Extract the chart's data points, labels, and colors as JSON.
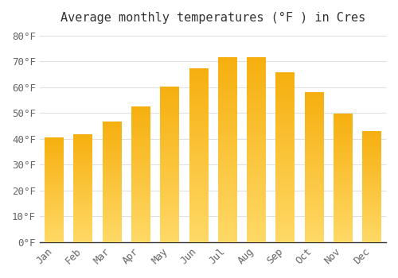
{
  "title": "Average monthly temperatures (°F ) in Cres",
  "months": [
    "Jan",
    "Feb",
    "Mar",
    "Apr",
    "May",
    "Jun",
    "Jul",
    "Aug",
    "Sep",
    "Oct",
    "Nov",
    "Dec"
  ],
  "values": [
    40.5,
    41.5,
    46.5,
    52.5,
    60.0,
    67.0,
    71.5,
    71.5,
    65.5,
    58.0,
    49.5,
    43.0
  ],
  "bar_color_dark": "#F5A800",
  "bar_color_light": "#FFD966",
  "ylim": [
    0,
    82
  ],
  "yticks": [
    0,
    10,
    20,
    30,
    40,
    50,
    60,
    70,
    80
  ],
  "background_color": "#FFFFFF",
  "grid_color": "#E0E0E0",
  "title_fontsize": 11,
  "tick_fontsize": 9,
  "font_family": "monospace"
}
